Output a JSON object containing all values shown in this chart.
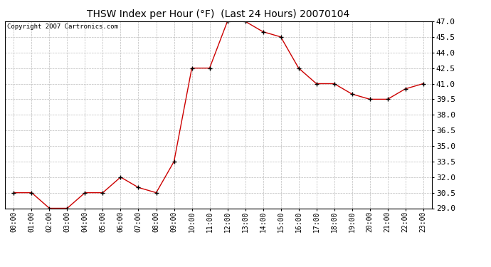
{
  "title": "THSW Index per Hour (°F)  (Last 24 Hours) 20070104",
  "copyright_text": "Copyright 2007 Cartronics.com",
  "hours": [
    "00:00",
    "01:00",
    "02:00",
    "03:00",
    "04:00",
    "05:00",
    "06:00",
    "07:00",
    "08:00",
    "09:00",
    "10:00",
    "11:00",
    "12:00",
    "13:00",
    "14:00",
    "15:00",
    "16:00",
    "17:00",
    "18:00",
    "19:00",
    "20:00",
    "21:00",
    "22:00",
    "23:00"
  ],
  "values": [
    30.5,
    30.5,
    29.0,
    29.0,
    30.5,
    30.5,
    32.0,
    31.0,
    30.5,
    33.5,
    42.5,
    42.5,
    47.0,
    47.0,
    46.0,
    45.5,
    42.5,
    41.0,
    41.0,
    40.0,
    39.5,
    39.5,
    40.5,
    41.0
  ],
  "ylim_min": 29.0,
  "ylim_max": 47.0,
  "ytick_min": 29.0,
  "ytick_max": 47.0,
  "ytick_step": 1.5,
  "line_color": "#cc0000",
  "marker": "+",
  "marker_color": "#000000",
  "marker_size": 5,
  "marker_linewidth": 1.0,
  "line_width": 1.0,
  "bg_color": "#ffffff",
  "plot_bg_color": "#ffffff",
  "grid_color": "#bbbbbb",
  "grid_linestyle": "--",
  "grid_linewidth": 0.5,
  "title_fontsize": 10,
  "copyright_fontsize": 6.5,
  "tick_fontsize": 7,
  "ytick_fontsize": 8,
  "xlabel_rotation": 90
}
